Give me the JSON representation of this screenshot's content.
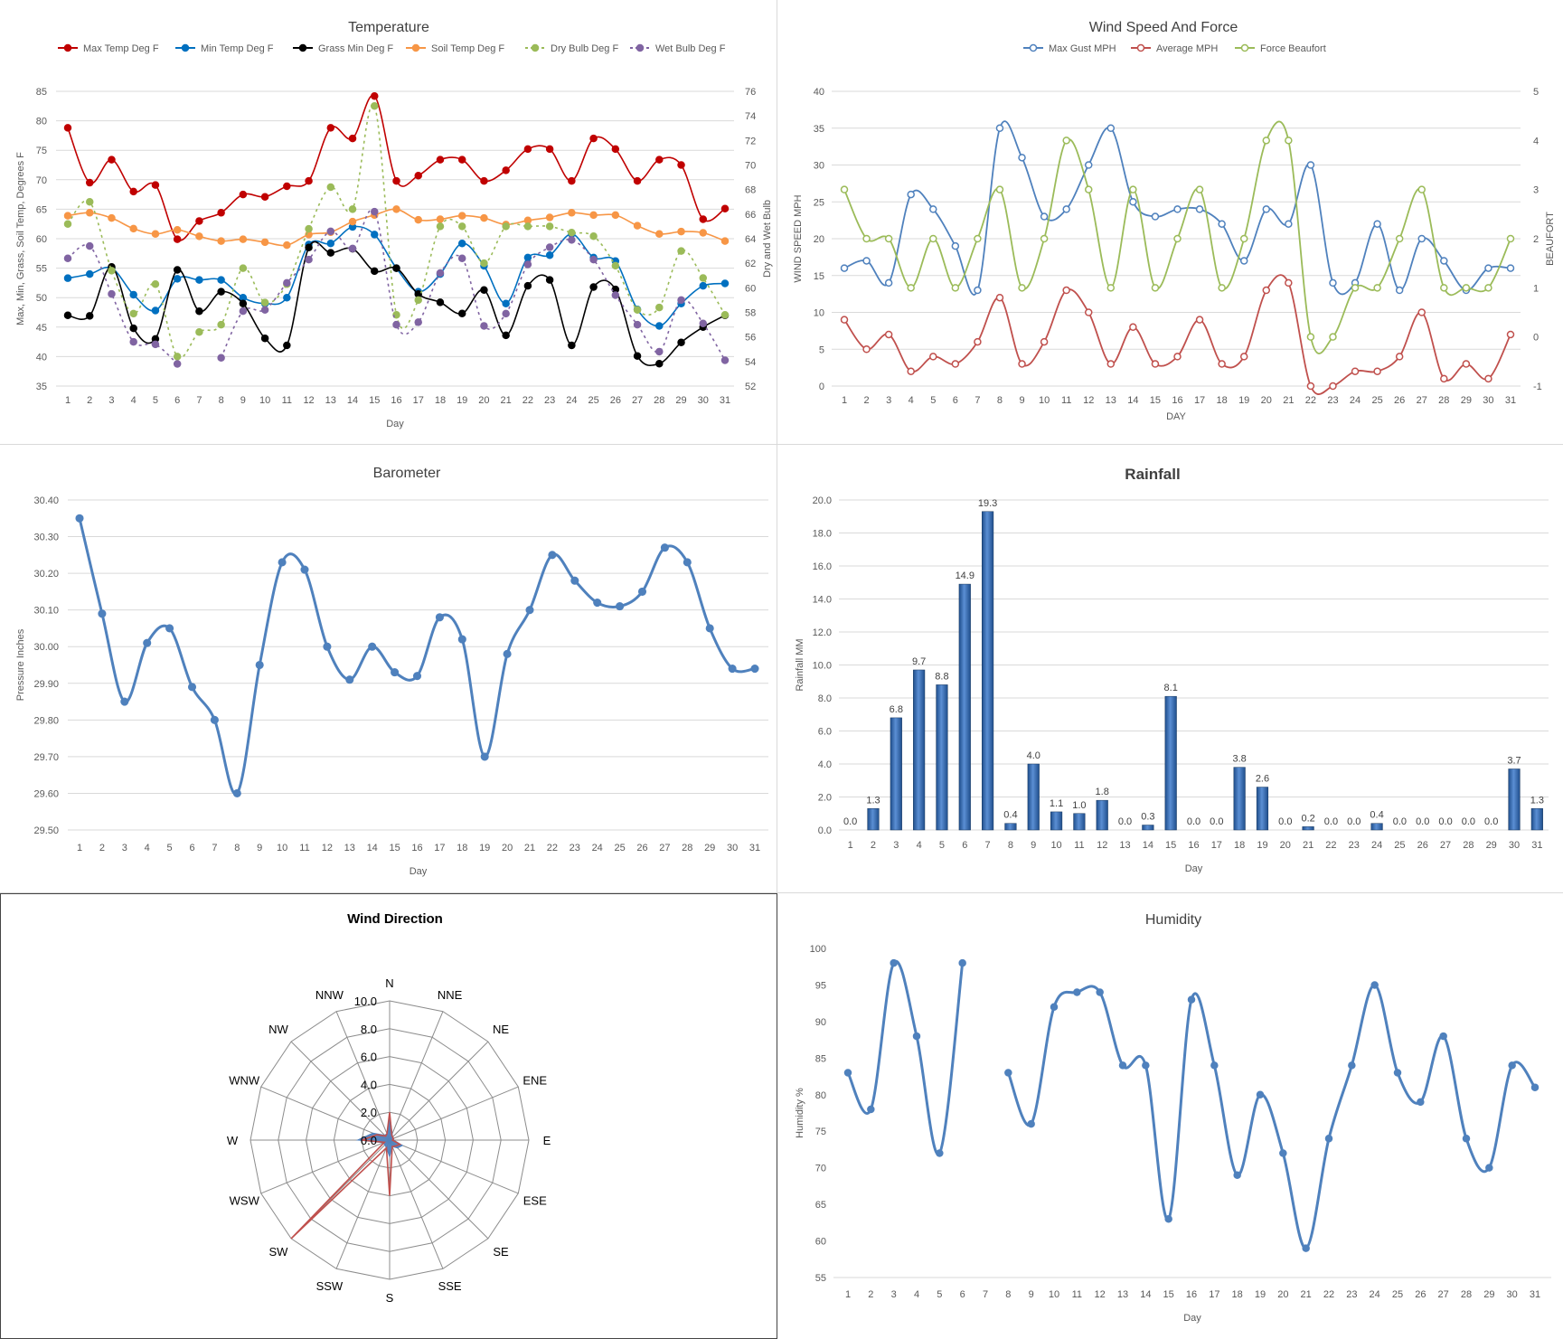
{
  "chart_data": [
    {
      "id": "temperature",
      "type": "line",
      "title": "Temperature",
      "xlabel": "Day",
      "ylabel": "Max, Min, Grass, Soil Temp, Degrees F",
      "y2label": "Dry and Wet Bulb",
      "ylim": [
        35,
        85
      ],
      "y2lim": [
        52,
        76
      ],
      "legend": "top",
      "categories": [
        "1",
        "2",
        "3",
        "4",
        "5",
        "6",
        "7",
        "8",
        "9",
        "10",
        "11",
        "12",
        "13",
        "14",
        "15",
        "16",
        "17",
        "18",
        "19",
        "20",
        "21",
        "22",
        "23",
        "24",
        "25",
        "26",
        "27",
        "28",
        "29",
        "30",
        "31"
      ],
      "series": [
        {
          "name": "Max Temp Deg F",
          "color": "#c00000",
          "axis": "left",
          "dashed": false,
          "values": [
            78.8,
            69.5,
            73.4,
            68.0,
            69.1,
            59.9,
            63.0,
            64.4,
            67.5,
            67.1,
            68.9,
            69.8,
            78.8,
            77.0,
            84.2,
            69.8,
            70.7,
            73.4,
            73.4,
            69.8,
            71.6,
            75.2,
            75.2,
            69.8,
            77.0,
            75.2,
            69.8,
            73.4,
            72.5,
            63.3,
            65.1
          ]
        },
        {
          "name": "Min Temp Deg F",
          "color": "#0070c0",
          "axis": "left",
          "dashed": false,
          "values": [
            53.3,
            54.0,
            55.0,
            50.5,
            47.8,
            53.2,
            53.0,
            53.0,
            50.0,
            49.0,
            50.0,
            59.0,
            59.2,
            62.0,
            60.7,
            55.0,
            51.0,
            54.0,
            59.2,
            55.4,
            49.0,
            56.8,
            57.2,
            60.8,
            56.8,
            56.2,
            48.0,
            45.2,
            49.0,
            52.0,
            52.4
          ]
        },
        {
          "name": "Grass Min Deg F",
          "color": "#000000",
          "axis": "left",
          "dashed": false,
          "values": [
            47.0,
            46.9,
            55.2,
            44.8,
            43.0,
            54.7,
            47.7,
            51.0,
            49.0,
            43.1,
            41.9,
            58.5,
            57.6,
            58.3,
            54.5,
            55.0,
            50.6,
            49.2,
            47.3,
            51.3,
            43.6,
            52.0,
            53.0,
            41.9,
            51.8,
            51.4,
            40.1,
            38.8,
            42.4,
            45.0,
            47.0
          ]
        },
        {
          "name": "Soil Temp Deg F",
          "color": "#f79646",
          "axis": "left",
          "dashed": false,
          "values": [
            63.9,
            64.4,
            63.5,
            61.7,
            60.8,
            61.5,
            60.4,
            59.6,
            59.9,
            59.4,
            58.9,
            60.7,
            61.1,
            62.9,
            64.0,
            65.0,
            63.2,
            63.3,
            63.9,
            63.5,
            62.4,
            63.1,
            63.6,
            64.4,
            64.0,
            64.0,
            62.2,
            60.8,
            61.2,
            61.0,
            59.6
          ]
        },
        {
          "name": "Dry Bulb Deg F",
          "color": "#9bbb59",
          "axis": "right",
          "dashed": true,
          "values": [
            65.2,
            67.0,
            61.4,
            57.9,
            60.3,
            54.4,
            56.4,
            57.0,
            61.6,
            58.8,
            60.3,
            64.8,
            68.2,
            66.4,
            74.8,
            57.8,
            59.0,
            65.0,
            65.0,
            62.0,
            65.0,
            65.0,
            65.0,
            64.5,
            64.2,
            61.8,
            58.2,
            58.4,
            63.0,
            60.8,
            57.8
          ]
        },
        {
          "name": "Wet Bulb Deg F",
          "color": "#8064a2",
          "axis": "right",
          "dashed": true,
          "values": [
            62.4,
            63.4,
            59.5,
            55.6,
            55.4,
            53.8,
            null,
            54.3,
            58.1,
            58.2,
            60.4,
            62.3,
            64.6,
            63.2,
            66.2,
            57.0,
            57.2,
            61.2,
            62.4,
            56.9,
            57.9,
            61.9,
            63.3,
            63.9,
            62.3,
            59.4,
            57.0,
            54.8,
            59.0,
            57.1,
            54.1
          ]
        }
      ]
    },
    {
      "id": "wind-speed",
      "type": "line",
      "title": "Wind Speed And Force",
      "xlabel": "DAY",
      "ylabel": "WIND SPEED MPH",
      "y2label": "BEAUFORT",
      "ylim": [
        0,
        40
      ],
      "y2lim": [
        -1,
        5
      ],
      "legend": "top",
      "categories": [
        "1",
        "2",
        "3",
        "4",
        "5",
        "6",
        "7",
        "8",
        "9",
        "10",
        "11",
        "12",
        "13",
        "14",
        "15",
        "16",
        "17",
        "18",
        "19",
        "20",
        "21",
        "22",
        "23",
        "24",
        "25",
        "26",
        "27",
        "28",
        "29",
        "30",
        "31"
      ],
      "series": [
        {
          "name": "Max Gust MPH",
          "color": "#4f81bd",
          "axis": "left",
          "values": [
            16,
            17,
            14,
            26,
            24,
            19,
            13,
            35,
            31,
            23,
            24,
            30,
            35,
            25,
            23,
            24,
            24,
            22,
            17,
            24,
            22,
            30,
            14,
            14,
            22,
            13,
            20,
            17,
            13,
            16,
            16
          ]
        },
        {
          "name": "Average MPH",
          "color": "#c0504d",
          "axis": "left",
          "values": [
            9,
            5,
            7,
            2,
            4,
            3,
            6,
            12,
            3,
            6,
            13,
            10,
            3,
            8,
            3,
            4,
            9,
            3,
            4,
            13,
            14,
            0,
            0,
            2,
            2,
            4,
            10,
            1,
            3,
            1,
            7
          ]
        },
        {
          "name": "Force Beaufort",
          "color": "#9bbb59",
          "axis": "right",
          "values": [
            3,
            2,
            2,
            1,
            2,
            1,
            2,
            3,
            1,
            2,
            4,
            3,
            1,
            3,
            1,
            2,
            3,
            1,
            2,
            4,
            4,
            0,
            0,
            1,
            1,
            2,
            3,
            1,
            1,
            1,
            2
          ]
        }
      ]
    },
    {
      "id": "barometer",
      "type": "line",
      "title": "Barometer",
      "xlabel": "Day",
      "ylabel": "Pressure Inches",
      "ylim": [
        29.5,
        30.4
      ],
      "legend": "none",
      "categories": [
        "1",
        "2",
        "3",
        "4",
        "5",
        "6",
        "7",
        "8",
        "9",
        "10",
        "11",
        "12",
        "13",
        "14",
        "15",
        "16",
        "17",
        "18",
        "19",
        "20",
        "21",
        "22",
        "23",
        "24",
        "25",
        "26",
        "27",
        "28",
        "29",
        "30",
        "31"
      ],
      "series": [
        {
          "name": "",
          "color": "#4f81bd",
          "values": [
            30.35,
            30.09,
            29.85,
            30.01,
            30.05,
            29.89,
            29.8,
            29.6,
            29.95,
            30.23,
            30.21,
            30.0,
            29.91,
            30.0,
            29.93,
            29.92,
            30.08,
            30.02,
            29.7,
            29.98,
            30.1,
            30.25,
            30.18,
            30.12,
            30.11,
            30.15,
            30.27,
            30.23,
            30.05,
            29.94,
            29.94
          ]
        }
      ]
    },
    {
      "id": "rainfall",
      "type": "bar",
      "title": "Rainfall",
      "xlabel": "Day",
      "ylabel": "Rainfall MM",
      "ylim": [
        0,
        20
      ],
      "legend": "none",
      "categories": [
        "1",
        "2",
        "3",
        "4",
        "5",
        "6",
        "7",
        "8",
        "9",
        "10",
        "11",
        "12",
        "13",
        "14",
        "15",
        "16",
        "17",
        "18",
        "19",
        "20",
        "21",
        "22",
        "23",
        "24",
        "25",
        "26",
        "27",
        "28",
        "29",
        "30",
        "31"
      ],
      "values": [
        0.0,
        1.3,
        6.8,
        9.7,
        8.8,
        14.9,
        19.3,
        0.4,
        4.0,
        1.1,
        1.0,
        1.8,
        0.0,
        0.3,
        8.1,
        0.0,
        0.0,
        3.8,
        2.6,
        0.0,
        0.2,
        0.0,
        0.0,
        0.4,
        0.0,
        0.0,
        0.0,
        0.0,
        0.0,
        3.7,
        1.3
      ],
      "value_labels": [
        "0.0",
        "1.3",
        "6.8",
        "9.7",
        "8.8",
        "14.9",
        "19.3",
        "0.4",
        "4.0",
        "1.1",
        "1.0",
        "1.8",
        "0.0",
        "0.3",
        "8.1",
        "0.0",
        "0.0",
        "3.8",
        "2.6",
        "0.0",
        "0.2",
        "0.0",
        "0.0",
        "0.4",
        "0.0",
        "0.0",
        "0.0",
        "0.0",
        "0.0",
        "3.7",
        "1.3"
      ]
    },
    {
      "id": "wind-direction",
      "type": "radar",
      "title": "Wind Direction",
      "legend": "none",
      "directions": [
        "N",
        "NNE",
        "NE",
        "ENE",
        "E",
        "ESE",
        "SE",
        "SSE",
        "S",
        "SSW",
        "SW",
        "WSW",
        "W",
        "WNW",
        "NW",
        "NNW"
      ],
      "rlim": [
        0,
        10
      ],
      "rticks": [
        "0.0",
        "2.0",
        "4.0",
        "6.0",
        "8.0",
        "10.0"
      ],
      "series": [
        {
          "name": "",
          "color": "#4f81bd",
          "fill": true,
          "values": [
            1.8,
            0.5,
            0.3,
            0.3,
            0.3,
            1.0,
            0.8,
            0.5,
            1.2,
            0.6,
            0.5,
            0.5,
            2.3,
            1.3,
            0.5,
            0.5
          ]
        },
        {
          "name": "",
          "color": "#c0504d",
          "fill": false,
          "values": [
            2.0,
            0.4,
            0.3,
            0.3,
            0.2,
            0.8,
            0.6,
            0.5,
            4.0,
            0.6,
            10.0,
            0.4,
            2.0,
            1.0,
            0.4,
            0.5
          ]
        }
      ]
    },
    {
      "id": "humidity",
      "type": "line",
      "title": "Humidity",
      "xlabel": "Day",
      "ylabel": "Humidity %",
      "ylim": [
        55,
        100
      ],
      "legend": "none",
      "categories": [
        "1",
        "2",
        "3",
        "4",
        "5",
        "6",
        "7",
        "8",
        "9",
        "10",
        "11",
        "12",
        "13",
        "14",
        "15",
        "16",
        "17",
        "18",
        "19",
        "20",
        "21",
        "22",
        "23",
        "24",
        "25",
        "26",
        "27",
        "28",
        "29",
        "30",
        "31"
      ],
      "series": [
        {
          "name": "",
          "color": "#4f81bd",
          "values": [
            83,
            78,
            98,
            88,
            72,
            98,
            null,
            83,
            76,
            92,
            94,
            94,
            84,
            84,
            63,
            93,
            84,
            69,
            80,
            72,
            59,
            74,
            84,
            95,
            83,
            79,
            88,
            74,
            70,
            84,
            81
          ]
        }
      ]
    }
  ]
}
